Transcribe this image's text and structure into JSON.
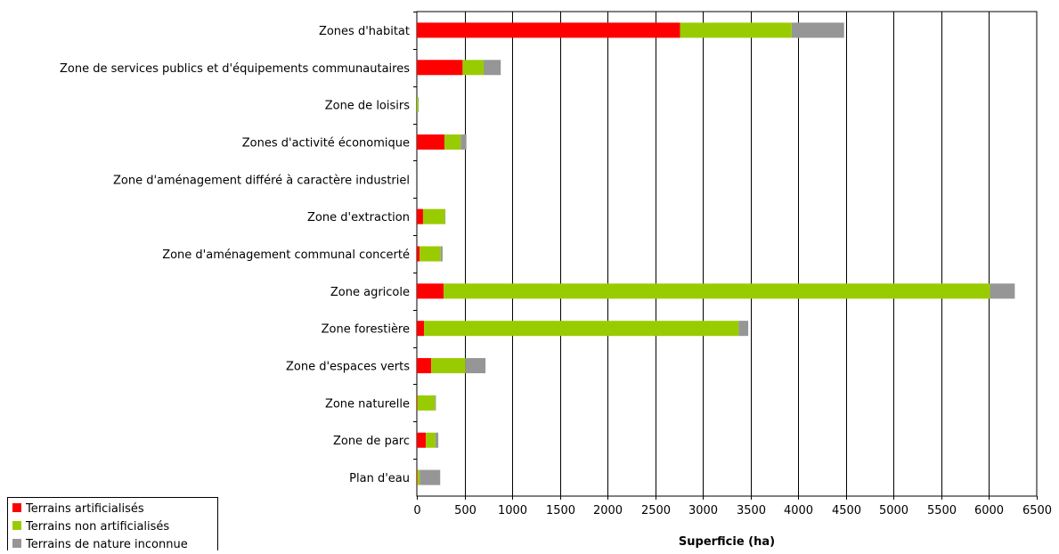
{
  "chart_data": {
    "type": "bar",
    "orientation": "horizontal",
    "stacked": true,
    "title": "",
    "xlabel": "Superficie (ha)",
    "ylabel": "",
    "xlim": [
      0,
      6500
    ],
    "xticks": [
      0,
      500,
      1000,
      1500,
      2000,
      2500,
      3000,
      3500,
      4000,
      4500,
      5000,
      5500,
      6000,
      6500
    ],
    "grid": "vertical",
    "legend_position": "bottom-left",
    "categories": [
      "Zones d'habitat",
      "Zone de services publics et d'équipements communautaires",
      "Zone de loisirs",
      "Zones d'activité économique",
      "Zone d'aménagement différé à caractère industriel",
      "Zone d'extraction",
      "Zone d'aménagement communal concerté",
      "Zone agricole",
      "Zone forestière",
      "Zone d'espaces verts",
      "Zone naturelle",
      "Zone de parc",
      "Plan d'eau"
    ],
    "series": [
      {
        "name": "Terrains artificialisés",
        "color": "#ff0000",
        "values": [
          2760,
          480,
          0,
          290,
          0,
          65,
          30,
          280,
          75,
          150,
          5,
          95,
          5
        ]
      },
      {
        "name": "Terrains non artificialisés",
        "color": "#99cc00",
        "values": [
          1170,
          220,
          15,
          170,
          0,
          230,
          220,
          5730,
          3300,
          360,
          185,
          100,
          25
        ]
      },
      {
        "name": "Terrains de nature inconnue",
        "color": "#969696",
        "values": [
          550,
          180,
          5,
          60,
          0,
          5,
          20,
          260,
          100,
          210,
          10,
          30,
          215
        ]
      }
    ]
  }
}
